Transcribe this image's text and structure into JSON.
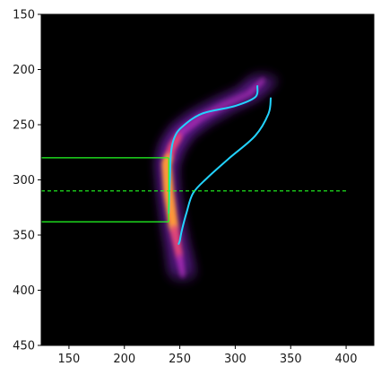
{
  "chart_data": {
    "type": "heatmap",
    "title": "",
    "xlabel": "",
    "ylabel": "",
    "xlim": [
      125,
      425
    ],
    "ylim": [
      450,
      150
    ],
    "y_inverted": true,
    "grid": false,
    "legend": "none",
    "background_color": "#000000",
    "colormap": "magma-like purple to orange",
    "xticks": [
      150,
      200,
      250,
      300,
      350,
      400
    ],
    "yticks": [
      150,
      200,
      250,
      300,
      350,
      400,
      450
    ],
    "xtick_labels": [
      "150",
      "200",
      "250",
      "300",
      "350",
      "400"
    ],
    "ytick_labels": [
      "150",
      "200",
      "250",
      "300",
      "350",
      "400",
      "450"
    ],
    "density_path": {
      "x": [
        325,
        312,
        290,
        268,
        252,
        243,
        238,
        240,
        244,
        249,
        253
      ],
      "y": [
        210,
        222,
        232,
        244,
        256,
        270,
        286,
        312,
        340,
        366,
        388
      ],
      "weight": [
        0.28,
        0.35,
        0.42,
        0.5,
        0.55,
        0.7,
        0.92,
        1.0,
        0.9,
        0.65,
        0.4
      ]
    },
    "series": [
      {
        "color": "#22d3ff",
        "x": [
          320,
          318,
          300,
          270,
          252,
          245,
          242,
          241,
          240
        ],
        "y": [
          215,
          225,
          233,
          240,
          252,
          262,
          276,
          300,
          330
        ]
      },
      {
        "color": "#22d3ff",
        "x": [
          332,
          330,
          318,
          295,
          275,
          262,
          256,
          252,
          250,
          249
        ],
        "y": [
          226,
          240,
          260,
          280,
          298,
          312,
          330,
          345,
          355,
          358
        ]
      }
    ],
    "overlays": {
      "box": {
        "color": "#22ff22",
        "x0": 125,
        "x1": 240,
        "y0": 280,
        "y1": 338
      },
      "vertical_line": {
        "color": "#22ff22",
        "x": 240,
        "y0": 280,
        "y1": 338
      },
      "dashed_hline": {
        "color": "#22ff22",
        "y": 310,
        "x0": 125,
        "x1": 400
      }
    }
  }
}
